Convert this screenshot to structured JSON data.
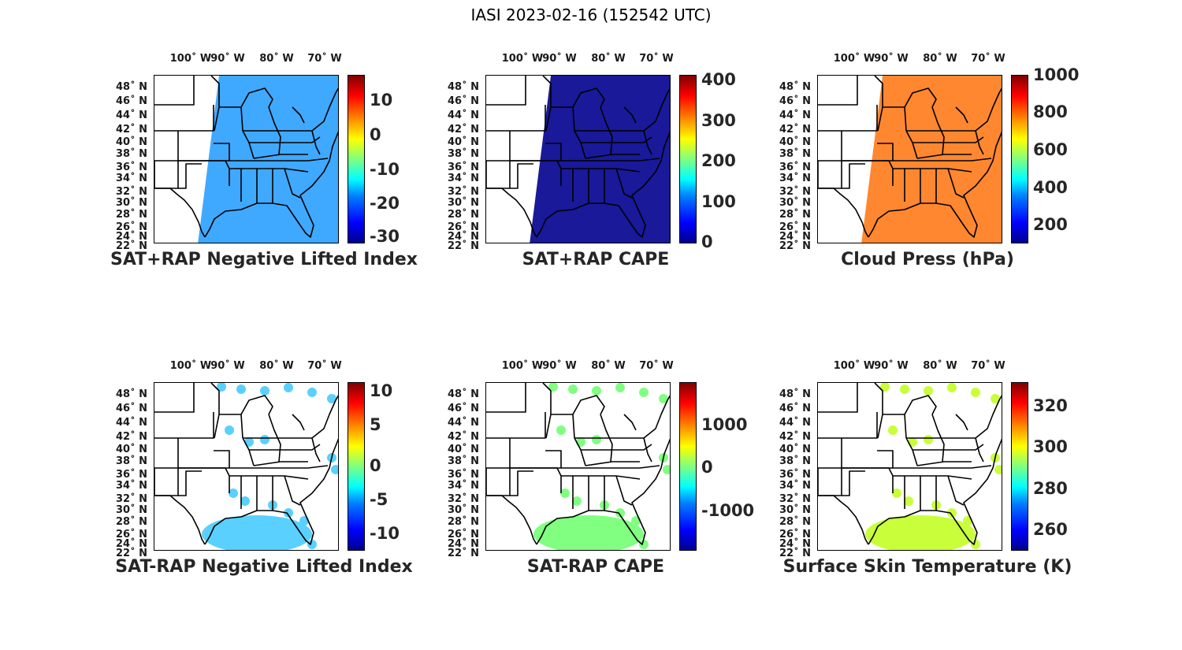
{
  "figure_title": "IASI 2023-02-16 (152542 UTC)",
  "lon_ticks": [
    "100˚ W",
    "90˚ W",
    "80˚ W",
    "70˚ W"
  ],
  "lat_ticks": [
    "48˚ N",
    "46˚ N",
    "44˚ N",
    "42˚ N",
    "40˚ N",
    "38˚ N",
    "36˚ N",
    "34˚ N",
    "32˚ N",
    "30˚ N",
    "28˚ N",
    "26˚ N",
    "24˚ N",
    "22˚ N"
  ],
  "panels": [
    {
      "title": "SAT+RAP Negative Lifted Index",
      "colorbar_ticks": [
        "10",
        "0",
        "-10",
        "-20",
        "-30"
      ],
      "colormap": "jet",
      "dominant_color": "#2aa0ff"
    },
    {
      "title": "SAT+RAP CAPE",
      "colorbar_ticks": [
        "400",
        "300",
        "200",
        "100",
        "0"
      ],
      "colormap": "jet",
      "dominant_color": "#00008f"
    },
    {
      "title": "Cloud Press (hPa)",
      "colorbar_ticks": [
        "1000",
        "800",
        "600",
        "400",
        "200"
      ],
      "colormap": "jet",
      "dominant_color": "#ff7a1a"
    },
    {
      "title": "SAT-RAP Negative Lifted Index",
      "colorbar_ticks": [
        "10",
        "5",
        "0",
        "-5",
        "-10"
      ],
      "colormap": "jet",
      "dominant_color": "#5ad0ff"
    },
    {
      "title": "SAT-RAP CAPE",
      "colorbar_ticks": [
        "1000",
        "0",
        "-1000"
      ],
      "colormap": "jet",
      "dominant_color": "#80ff80"
    },
    {
      "title": "Surface Skin Temperature (K)",
      "colorbar_ticks": [
        "320",
        "300",
        "280",
        "260"
      ],
      "colormap": "jet",
      "dominant_color": "#c8ff3a"
    }
  ]
}
